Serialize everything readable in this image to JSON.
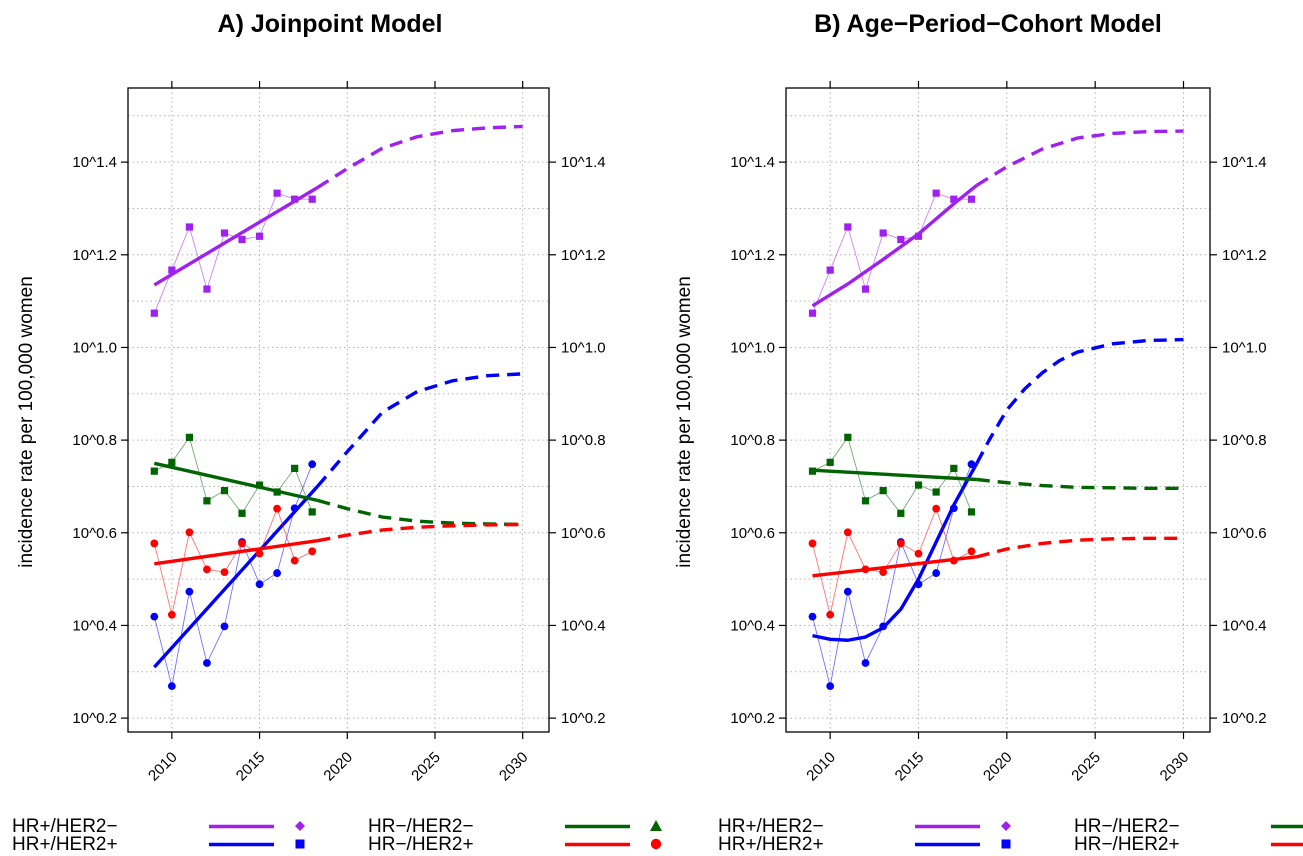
{
  "chart_data": [
    {
      "type": "line",
      "title": "A) Joinpoint Model",
      "ylabel": "incidence rate per 100,000 women",
      "xlabel": "",
      "xlim": [
        2007.5,
        2031.5
      ],
      "x_ticks": [
        2010,
        2015,
        2020,
        2025,
        2030
      ],
      "x_tick_labels": [
        "2010",
        "2015",
        "2020",
        "2025",
        "2030"
      ],
      "y_scale": "log10",
      "ylim_log10": [
        0.17,
        1.56
      ],
      "y_ticks_log10": [
        0.2,
        0.4,
        0.6,
        0.8,
        1.0,
        1.2,
        1.4
      ],
      "y_tick_labels": [
        "10^0.2",
        "10^0.4",
        "10^0.6",
        "10^0.8",
        "10^1.0",
        "10^1.2",
        "10^1.4"
      ],
      "grid": true,
      "observed_years": [
        2009,
        2010,
        2011,
        2012,
        2013,
        2014,
        2015,
        2016,
        2017,
        2018
      ],
      "series": [
        {
          "name": "HR+/HER2−",
          "color": "#A020F0",
          "marker": "square",
          "observed_log10": [
            1.074,
            1.167,
            1.26,
            1.126,
            1.247,
            1.233,
            1.24,
            1.333,
            1.32,
            1.32
          ],
          "fit_x": [
            2009,
            2018.3
          ],
          "fit_log10": [
            1.135,
            1.345
          ],
          "projection_x": [
            2018.3,
            2020,
            2022,
            2024,
            2026,
            2028,
            2030
          ],
          "projection_log10": [
            1.345,
            1.386,
            1.43,
            1.455,
            1.468,
            1.474,
            1.477
          ]
        },
        {
          "name": "HR+/HER2+",
          "color": "#0000FF",
          "marker": "circle",
          "observed_log10": [
            0.419,
            0.269,
            0.473,
            0.319,
            0.398,
            0.58,
            0.489,
            0.513,
            0.653,
            0.748
          ],
          "fit_x": [
            2009,
            2018.3
          ],
          "fit_log10": [
            0.31,
            0.7
          ],
          "projection_x": [
            2018.3,
            2020,
            2022,
            2024,
            2026,
            2028,
            2030
          ],
          "projection_log10": [
            0.7,
            0.775,
            0.86,
            0.905,
            0.928,
            0.939,
            0.943
          ]
        },
        {
          "name": "HR−/HER2−",
          "color": "#006400",
          "marker": "square",
          "observed_log10": [
            0.733,
            0.752,
            0.806,
            0.669,
            0.691,
            0.642,
            0.703,
            0.688,
            0.739,
            0.645
          ],
          "fit_x": [
            2009,
            2018.3
          ],
          "fit_log10": [
            0.75,
            0.67
          ],
          "projection_x": [
            2018.3,
            2020,
            2022,
            2024,
            2026,
            2028,
            2030
          ],
          "projection_log10": [
            0.67,
            0.652,
            0.634,
            0.625,
            0.621,
            0.619,
            0.618
          ]
        },
        {
          "name": "HR−/HER2+",
          "color": "#FF0000",
          "marker": "circle",
          "observed_log10": [
            0.577,
            0.423,
            0.601,
            0.521,
            0.515,
            0.577,
            0.555,
            0.652,
            0.54,
            0.56
          ],
          "fit_x": [
            2009,
            2018.3
          ],
          "fit_log10": [
            0.533,
            0.583
          ],
          "projection_x": [
            2018.3,
            2020,
            2022,
            2024,
            2026,
            2028,
            2030
          ],
          "projection_log10": [
            0.583,
            0.595,
            0.606,
            0.612,
            0.615,
            0.617,
            0.618
          ]
        }
      ]
    },
    {
      "type": "line",
      "title": "B) Age−Period−Cohort Model",
      "ylabel": "incidence rate per 100,000 women",
      "xlabel": "",
      "xlim": [
        2007.5,
        2031.5
      ],
      "x_ticks": [
        2010,
        2015,
        2020,
        2025,
        2030
      ],
      "x_tick_labels": [
        "2010",
        "2015",
        "2020",
        "2025",
        "2030"
      ],
      "y_scale": "log10",
      "ylim_log10": [
        0.17,
        1.56
      ],
      "y_ticks_log10": [
        0.2,
        0.4,
        0.6,
        0.8,
        1.0,
        1.2,
        1.4
      ],
      "y_tick_labels": [
        "10^0.2",
        "10^0.4",
        "10^0.6",
        "10^0.8",
        "10^1.0",
        "10^1.2",
        "10^1.4"
      ],
      "grid": true,
      "observed_years": [
        2009,
        2010,
        2011,
        2012,
        2013,
        2014,
        2015,
        2016,
        2017,
        2018
      ],
      "series": [
        {
          "name": "HR+/HER2−",
          "color": "#A020F0",
          "marker": "square",
          "observed_log10": [
            1.074,
            1.167,
            1.26,
            1.126,
            1.247,
            1.233,
            1.24,
            1.333,
            1.32,
            1.32
          ],
          "fit_x": [
            2009,
            2011,
            2013,
            2015,
            2017,
            2018.3
          ],
          "fit_log10": [
            1.09,
            1.137,
            1.19,
            1.245,
            1.31,
            1.35
          ],
          "projection_x": [
            2018.3,
            2020,
            2022,
            2024,
            2026,
            2028,
            2030
          ],
          "projection_log10": [
            1.35,
            1.39,
            1.428,
            1.452,
            1.462,
            1.466,
            1.467
          ]
        },
        {
          "name": "HR+/HER2+",
          "color": "#0000FF",
          "marker": "circle",
          "observed_log10": [
            0.419,
            0.269,
            0.473,
            0.319,
            0.398,
            0.58,
            0.489,
            0.513,
            0.653,
            0.748
          ],
          "fit_x": [
            2009,
            2010,
            2011,
            2012,
            2013,
            2014,
            2015,
            2016,
            2017,
            2018.3
          ],
          "fit_log10": [
            0.378,
            0.37,
            0.368,
            0.375,
            0.395,
            0.435,
            0.5,
            0.58,
            0.66,
            0.75
          ],
          "projection_x": [
            2018.3,
            2019,
            2020,
            2021,
            2022,
            2023,
            2024,
            2026,
            2028,
            2030
          ],
          "projection_log10": [
            0.75,
            0.8,
            0.865,
            0.91,
            0.945,
            0.972,
            0.99,
            1.008,
            1.015,
            1.017
          ]
        },
        {
          "name": "HR−/HER2−",
          "color": "#006400",
          "marker": "square",
          "observed_log10": [
            0.733,
            0.752,
            0.806,
            0.669,
            0.691,
            0.642,
            0.703,
            0.688,
            0.739,
            0.645
          ],
          "fit_x": [
            2009,
            2018.3
          ],
          "fit_log10": [
            0.735,
            0.715
          ],
          "projection_x": [
            2018.3,
            2020,
            2022,
            2024,
            2026,
            2028,
            2030
          ],
          "projection_log10": [
            0.715,
            0.708,
            0.702,
            0.698,
            0.697,
            0.696,
            0.696
          ]
        },
        {
          "name": "HR−/HER2+",
          "color": "#FF0000",
          "marker": "circle",
          "observed_log10": [
            0.577,
            0.423,
            0.601,
            0.521,
            0.515,
            0.577,
            0.555,
            0.652,
            0.54,
            0.56
          ],
          "fit_x": [
            2009,
            2018.3
          ],
          "fit_log10": [
            0.507,
            0.548
          ],
          "projection_x": [
            2018.3,
            2020,
            2022,
            2024,
            2026,
            2028,
            2030
          ],
          "projection_log10": [
            0.548,
            0.565,
            0.577,
            0.584,
            0.587,
            0.588,
            0.588
          ]
        }
      ]
    }
  ],
  "legend": {
    "items": [
      {
        "label": "HR+/HER2−",
        "color": "#A020F0",
        "symbol": "diamond"
      },
      {
        "label": "HR+/HER2+",
        "color": "#0000FF",
        "symbol": "square"
      },
      {
        "label": "HR−/HER2−",
        "color": "#006400",
        "symbol": "triangle"
      },
      {
        "label": "HR−/HER2+",
        "color": "#FF0000",
        "symbol": "circle"
      }
    ]
  }
}
